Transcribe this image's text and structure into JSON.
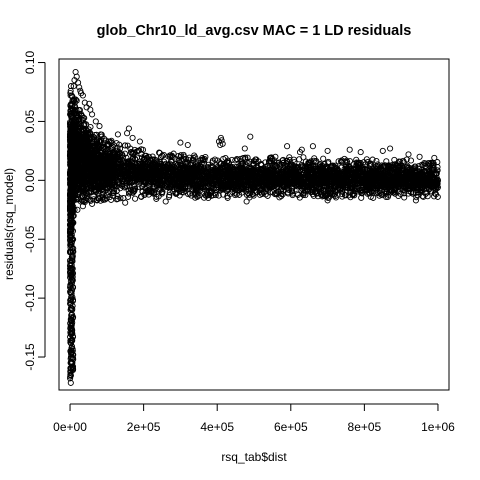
{
  "chart_data": {
    "type": "scatter",
    "title": "glob_Chr10_ld_avg.csv MAC = 1 LD residuals",
    "xlabel": "rsq_tab$dist",
    "ylabel": "residuals(rsq_model)",
    "xlim": [
      -30000,
      1030000
    ],
    "ylim": [
      -0.178,
      0.103
    ],
    "x_ticks": [
      {
        "value": 0,
        "label": "0e+00"
      },
      {
        "value": 200000,
        "label": "2e+05"
      },
      {
        "value": 400000,
        "label": "4e+05"
      },
      {
        "value": 600000,
        "label": "6e+05"
      },
      {
        "value": 800000,
        "label": "8e+05"
      },
      {
        "value": 1000000,
        "label": "1e+06"
      }
    ],
    "y_ticks": [
      {
        "value": -0.15,
        "label": "-0.15"
      },
      {
        "value": -0.1,
        "label": "-0.10"
      },
      {
        "value": -0.05,
        "label": "-0.05"
      },
      {
        "value": 0.0,
        "label": "0.00"
      },
      {
        "value": 0.05,
        "label": "0.05"
      },
      {
        "value": 0.1,
        "label": "0.10"
      }
    ],
    "marker": "open-circle",
    "point_color": "#000000",
    "dense_band": {
      "x_range": [
        0,
        1000000
      ],
      "upper_envelope": [
        [
          0,
          0.075
        ],
        [
          20000,
          0.07
        ],
        [
          40000,
          0.055
        ],
        [
          60000,
          0.045
        ],
        [
          100000,
          0.036
        ],
        [
          150000,
          0.03
        ],
        [
          200000,
          0.026
        ],
        [
          300000,
          0.022
        ],
        [
          400000,
          0.02
        ],
        [
          500000,
          0.02
        ],
        [
          600000,
          0.02
        ],
        [
          700000,
          0.019
        ],
        [
          800000,
          0.019
        ],
        [
          900000,
          0.018
        ],
        [
          1000000,
          0.016
        ]
      ],
      "lower_envelope": [
        [
          0,
          -0.1
        ],
        [
          5000,
          -0.04
        ],
        [
          10000,
          -0.022
        ],
        [
          20000,
          -0.02
        ],
        [
          50000,
          -0.018
        ],
        [
          100000,
          -0.017
        ],
        [
          200000,
          -0.016
        ],
        [
          400000,
          -0.015
        ],
        [
          600000,
          -0.015
        ],
        [
          800000,
          -0.015
        ],
        [
          1000000,
          -0.015
        ]
      ]
    },
    "outlier_points": [
      {
        "x": 2000,
        "y": -0.172
      },
      {
        "x": 1000,
        "y": -0.165
      },
      {
        "x": 3000,
        "y": -0.16
      },
      {
        "x": 1500,
        "y": -0.155
      },
      {
        "x": 2500,
        "y": -0.15
      },
      {
        "x": 1000,
        "y": -0.145
      },
      {
        "x": 2000,
        "y": -0.138
      },
      {
        "x": 1800,
        "y": -0.13
      },
      {
        "x": 1200,
        "y": -0.125
      },
      {
        "x": 2200,
        "y": -0.118
      },
      {
        "x": 1600,
        "y": -0.11
      },
      {
        "x": 2800,
        "y": -0.104
      },
      {
        "x": 3000,
        "y": -0.095
      },
      {
        "x": 3500,
        "y": -0.088
      },
      {
        "x": 4000,
        "y": -0.08
      },
      {
        "x": 4500,
        "y": -0.072
      },
      {
        "x": 5000,
        "y": -0.065
      },
      {
        "x": 6000,
        "y": -0.058
      },
      {
        "x": 7000,
        "y": -0.05
      },
      {
        "x": 8000,
        "y": -0.043
      },
      {
        "x": 9000,
        "y": -0.036
      },
      {
        "x": 10000,
        "y": -0.03
      },
      {
        "x": 12000,
        "y": -0.025
      },
      {
        "x": 15000,
        "y": 0.092
      },
      {
        "x": 18000,
        "y": 0.088
      },
      {
        "x": 12000,
        "y": 0.085
      },
      {
        "x": 22000,
        "y": 0.083
      },
      {
        "x": 10000,
        "y": 0.08
      },
      {
        "x": 25000,
        "y": 0.079
      },
      {
        "x": 28000,
        "y": 0.076
      },
      {
        "x": 30000,
        "y": 0.074
      },
      {
        "x": 35000,
        "y": 0.072
      },
      {
        "x": 40000,
        "y": 0.066
      },
      {
        "x": 52000,
        "y": 0.065
      },
      {
        "x": 45000,
        "y": 0.062
      },
      {
        "x": 55000,
        "y": 0.06
      },
      {
        "x": 60000,
        "y": 0.056
      },
      {
        "x": 70000,
        "y": 0.05
      },
      {
        "x": 80000,
        "y": 0.046
      },
      {
        "x": 160000,
        "y": 0.044
      },
      {
        "x": 155000,
        "y": 0.04
      },
      {
        "x": 130000,
        "y": 0.039
      },
      {
        "x": 170000,
        "y": 0.036
      },
      {
        "x": 190000,
        "y": 0.033
      },
      {
        "x": 300000,
        "y": 0.032
      },
      {
        "x": 320000,
        "y": 0.03
      },
      {
        "x": 410000,
        "y": 0.036
      },
      {
        "x": 412000,
        "y": 0.034
      },
      {
        "x": 405000,
        "y": 0.033
      },
      {
        "x": 415000,
        "y": 0.031
      },
      {
        "x": 408000,
        "y": 0.03
      },
      {
        "x": 490000,
        "y": 0.037
      },
      {
        "x": 475000,
        "y": 0.027
      },
      {
        "x": 590000,
        "y": 0.029
      },
      {
        "x": 630000,
        "y": 0.026
      },
      {
        "x": 625000,
        "y": 0.024
      },
      {
        "x": 660000,
        "y": 0.029
      },
      {
        "x": 700000,
        "y": 0.025
      },
      {
        "x": 760000,
        "y": 0.026
      },
      {
        "x": 790000,
        "y": 0.024
      },
      {
        "x": 850000,
        "y": 0.025
      },
      {
        "x": 870000,
        "y": 0.027
      },
      {
        "x": 920000,
        "y": 0.022
      },
      {
        "x": 950000,
        "y": 0.02
      },
      {
        "x": 990000,
        "y": 0.019
      },
      {
        "x": 20000,
        "y": -0.025
      },
      {
        "x": 35000,
        "y": -0.022
      },
      {
        "x": 60000,
        "y": -0.02
      },
      {
        "x": 150000,
        "y": -0.019
      },
      {
        "x": 260000,
        "y": -0.018
      },
      {
        "x": 480000,
        "y": -0.018
      },
      {
        "x": 700000,
        "y": -0.017
      },
      {
        "x": 940000,
        "y": -0.017
      }
    ]
  }
}
